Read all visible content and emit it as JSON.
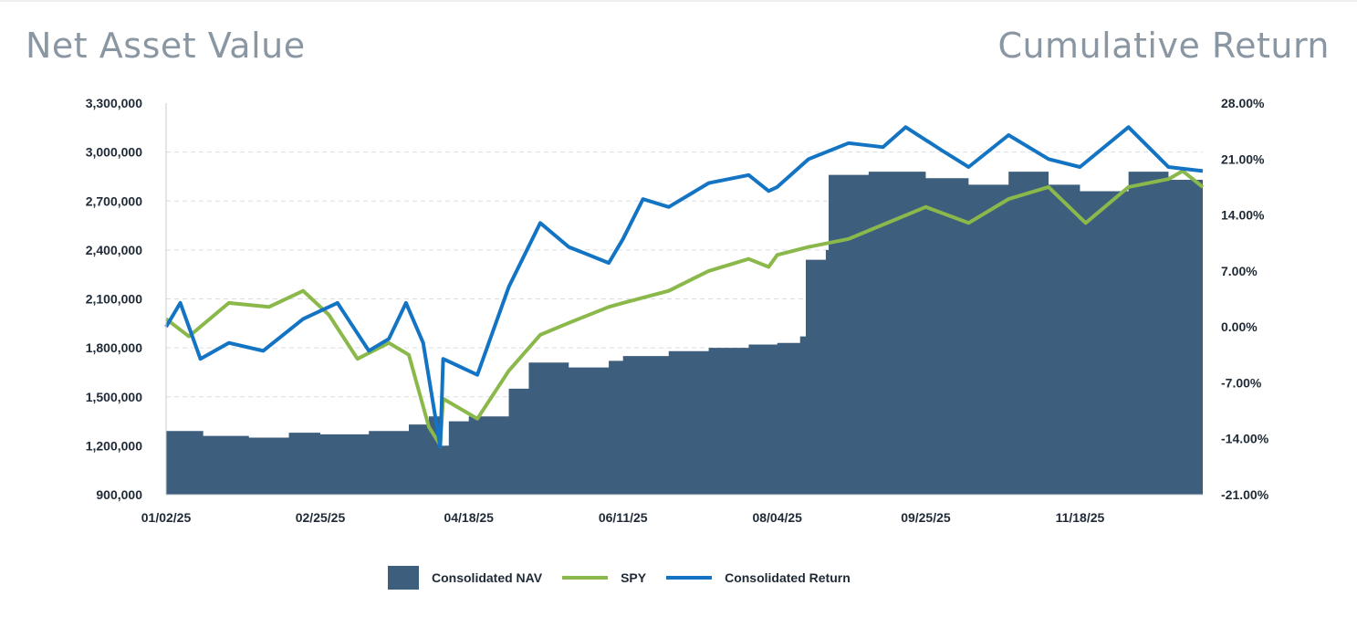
{
  "header": {
    "left_title": "Net Asset Value",
    "right_title": "Cumulative Return"
  },
  "chart_data": {
    "type": "area",
    "y_left": {
      "min": 900000,
      "max": 3300000,
      "ticks": [
        "3,300,000",
        "3,000,000",
        "2,700,000",
        "2,400,000",
        "2,100,000",
        "1,800,000",
        "1,500,000",
        "1,200,000",
        "900,000"
      ]
    },
    "y_right": {
      "min": -21,
      "max": 28,
      "ticks": [
        "28.00%",
        "21.00%",
        "14.00%",
        "7.00%",
        "0.00%",
        "-7.00%",
        "-14.00%",
        "-21.00%"
      ]
    },
    "x_ticks": [
      {
        "label": "01/02/25",
        "x": "2025-01-02"
      },
      {
        "label": "02/25/25",
        "x": "2025-02-25"
      },
      {
        "label": "04/18/25",
        "x": "2025-04-18"
      },
      {
        "label": "06/11/25",
        "x": "2025-06-11"
      },
      {
        "label": "08/04/25",
        "x": "2025-08-04"
      },
      {
        "label": "09/25/25",
        "x": "2025-09-25"
      },
      {
        "label": "11/18/25",
        "x": "2025-11-18"
      }
    ],
    "x_range": [
      "2025-01-02",
      "2025-12-31"
    ],
    "grid": "horizontal-dashed",
    "legend_position": "bottom",
    "series": [
      {
        "name": "Consolidated NAV",
        "axis": "left",
        "style": "area",
        "color": "#3d5f7d",
        "points": [
          [
            "2025-01-02",
            1290000
          ],
          [
            "2025-01-15",
            1260000
          ],
          [
            "2025-01-31",
            1250000
          ],
          [
            "2025-02-14",
            1280000
          ],
          [
            "2025-02-25",
            1270000
          ],
          [
            "2025-03-14",
            1290000
          ],
          [
            "2025-03-28",
            1330000
          ],
          [
            "2025-04-04",
            1380000
          ],
          [
            "2025-04-08",
            1200000
          ],
          [
            "2025-04-11",
            1350000
          ],
          [
            "2025-04-18",
            1380000
          ],
          [
            "2025-05-02",
            1550000
          ],
          [
            "2025-05-09",
            1710000
          ],
          [
            "2025-05-23",
            1680000
          ],
          [
            "2025-06-06",
            1720000
          ],
          [
            "2025-06-11",
            1750000
          ],
          [
            "2025-06-27",
            1780000
          ],
          [
            "2025-07-11",
            1800000
          ],
          [
            "2025-07-25",
            1820000
          ],
          [
            "2025-08-04",
            1830000
          ],
          [
            "2025-08-12",
            1870000
          ],
          [
            "2025-08-14",
            2340000
          ],
          [
            "2025-08-21",
            2400000
          ],
          [
            "2025-08-22",
            2860000
          ],
          [
            "2025-09-05",
            2880000
          ],
          [
            "2025-09-25",
            2840000
          ],
          [
            "2025-10-10",
            2800000
          ],
          [
            "2025-10-24",
            2880000
          ],
          [
            "2025-11-07",
            2800000
          ],
          [
            "2025-11-18",
            2760000
          ],
          [
            "2025-12-05",
            2880000
          ],
          [
            "2025-12-19",
            2830000
          ],
          [
            "2025-12-31",
            2770000
          ]
        ]
      },
      {
        "name": "SPY",
        "axis": "right",
        "color": "#8ab84a",
        "points": [
          [
            "2025-01-02",
            1.0
          ],
          [
            "2025-01-10",
            -1.2
          ],
          [
            "2025-01-24",
            3.0
          ],
          [
            "2025-02-07",
            2.5
          ],
          [
            "2025-02-19",
            4.5
          ],
          [
            "2025-02-28",
            1.5
          ],
          [
            "2025-03-10",
            -4.0
          ],
          [
            "2025-03-21",
            -2.0
          ],
          [
            "2025-03-28",
            -3.5
          ],
          [
            "2025-04-04",
            -12.5
          ],
          [
            "2025-04-08",
            -14.8
          ],
          [
            "2025-04-09",
            -9.0
          ],
          [
            "2025-04-21",
            -11.5
          ],
          [
            "2025-05-02",
            -5.5
          ],
          [
            "2025-05-13",
            -1.0
          ],
          [
            "2025-05-23",
            0.5
          ],
          [
            "2025-06-06",
            2.5
          ],
          [
            "2025-06-11",
            3.0
          ],
          [
            "2025-06-27",
            4.5
          ],
          [
            "2025-07-11",
            7.0
          ],
          [
            "2025-07-25",
            8.5
          ],
          [
            "2025-08-01",
            7.5
          ],
          [
            "2025-08-04",
            9.0
          ],
          [
            "2025-08-15",
            10.0
          ],
          [
            "2025-08-29",
            11.0
          ],
          [
            "2025-09-25",
            15.0
          ],
          [
            "2025-10-10",
            13.0
          ],
          [
            "2025-10-24",
            16.0
          ],
          [
            "2025-11-07",
            17.5
          ],
          [
            "2025-11-20",
            13.0
          ],
          [
            "2025-12-05",
            17.5
          ],
          [
            "2025-12-19",
            18.5
          ],
          [
            "2025-12-24",
            19.5
          ],
          [
            "2025-12-31",
            17.5
          ]
        ]
      },
      {
        "name": "Consolidated Return",
        "axis": "right",
        "color": "#1474c4",
        "points": [
          [
            "2025-01-02",
            0.0
          ],
          [
            "2025-01-07",
            3.0
          ],
          [
            "2025-01-14",
            -4.0
          ],
          [
            "2025-01-24",
            -2.0
          ],
          [
            "2025-02-05",
            -3.0
          ],
          [
            "2025-02-19",
            1.0
          ],
          [
            "2025-03-03",
            3.0
          ],
          [
            "2025-03-14",
            -3.0
          ],
          [
            "2025-03-21",
            -1.5
          ],
          [
            "2025-03-27",
            3.0
          ],
          [
            "2025-04-02",
            -2.0
          ],
          [
            "2025-04-08",
            -15.0
          ],
          [
            "2025-04-09",
            -4.0
          ],
          [
            "2025-04-21",
            -6.0
          ],
          [
            "2025-05-02",
            5.0
          ],
          [
            "2025-05-13",
            13.0
          ],
          [
            "2025-05-23",
            10.0
          ],
          [
            "2025-06-06",
            8.0
          ],
          [
            "2025-06-11",
            11.0
          ],
          [
            "2025-06-18",
            16.0
          ],
          [
            "2025-06-27",
            15.0
          ],
          [
            "2025-07-11",
            18.0
          ],
          [
            "2025-07-25",
            19.0
          ],
          [
            "2025-08-01",
            17.0
          ],
          [
            "2025-08-04",
            17.5
          ],
          [
            "2025-08-15",
            21.0
          ],
          [
            "2025-08-29",
            23.0
          ],
          [
            "2025-09-10",
            22.5
          ],
          [
            "2025-09-18",
            25.0
          ],
          [
            "2025-10-01",
            22.0
          ],
          [
            "2025-10-10",
            20.0
          ],
          [
            "2025-10-24",
            24.0
          ],
          [
            "2025-11-07",
            21.0
          ],
          [
            "2025-11-18",
            20.0
          ],
          [
            "2025-12-05",
            25.0
          ],
          [
            "2025-12-19",
            20.0
          ],
          [
            "2025-12-31",
            19.5
          ]
        ]
      }
    ]
  }
}
